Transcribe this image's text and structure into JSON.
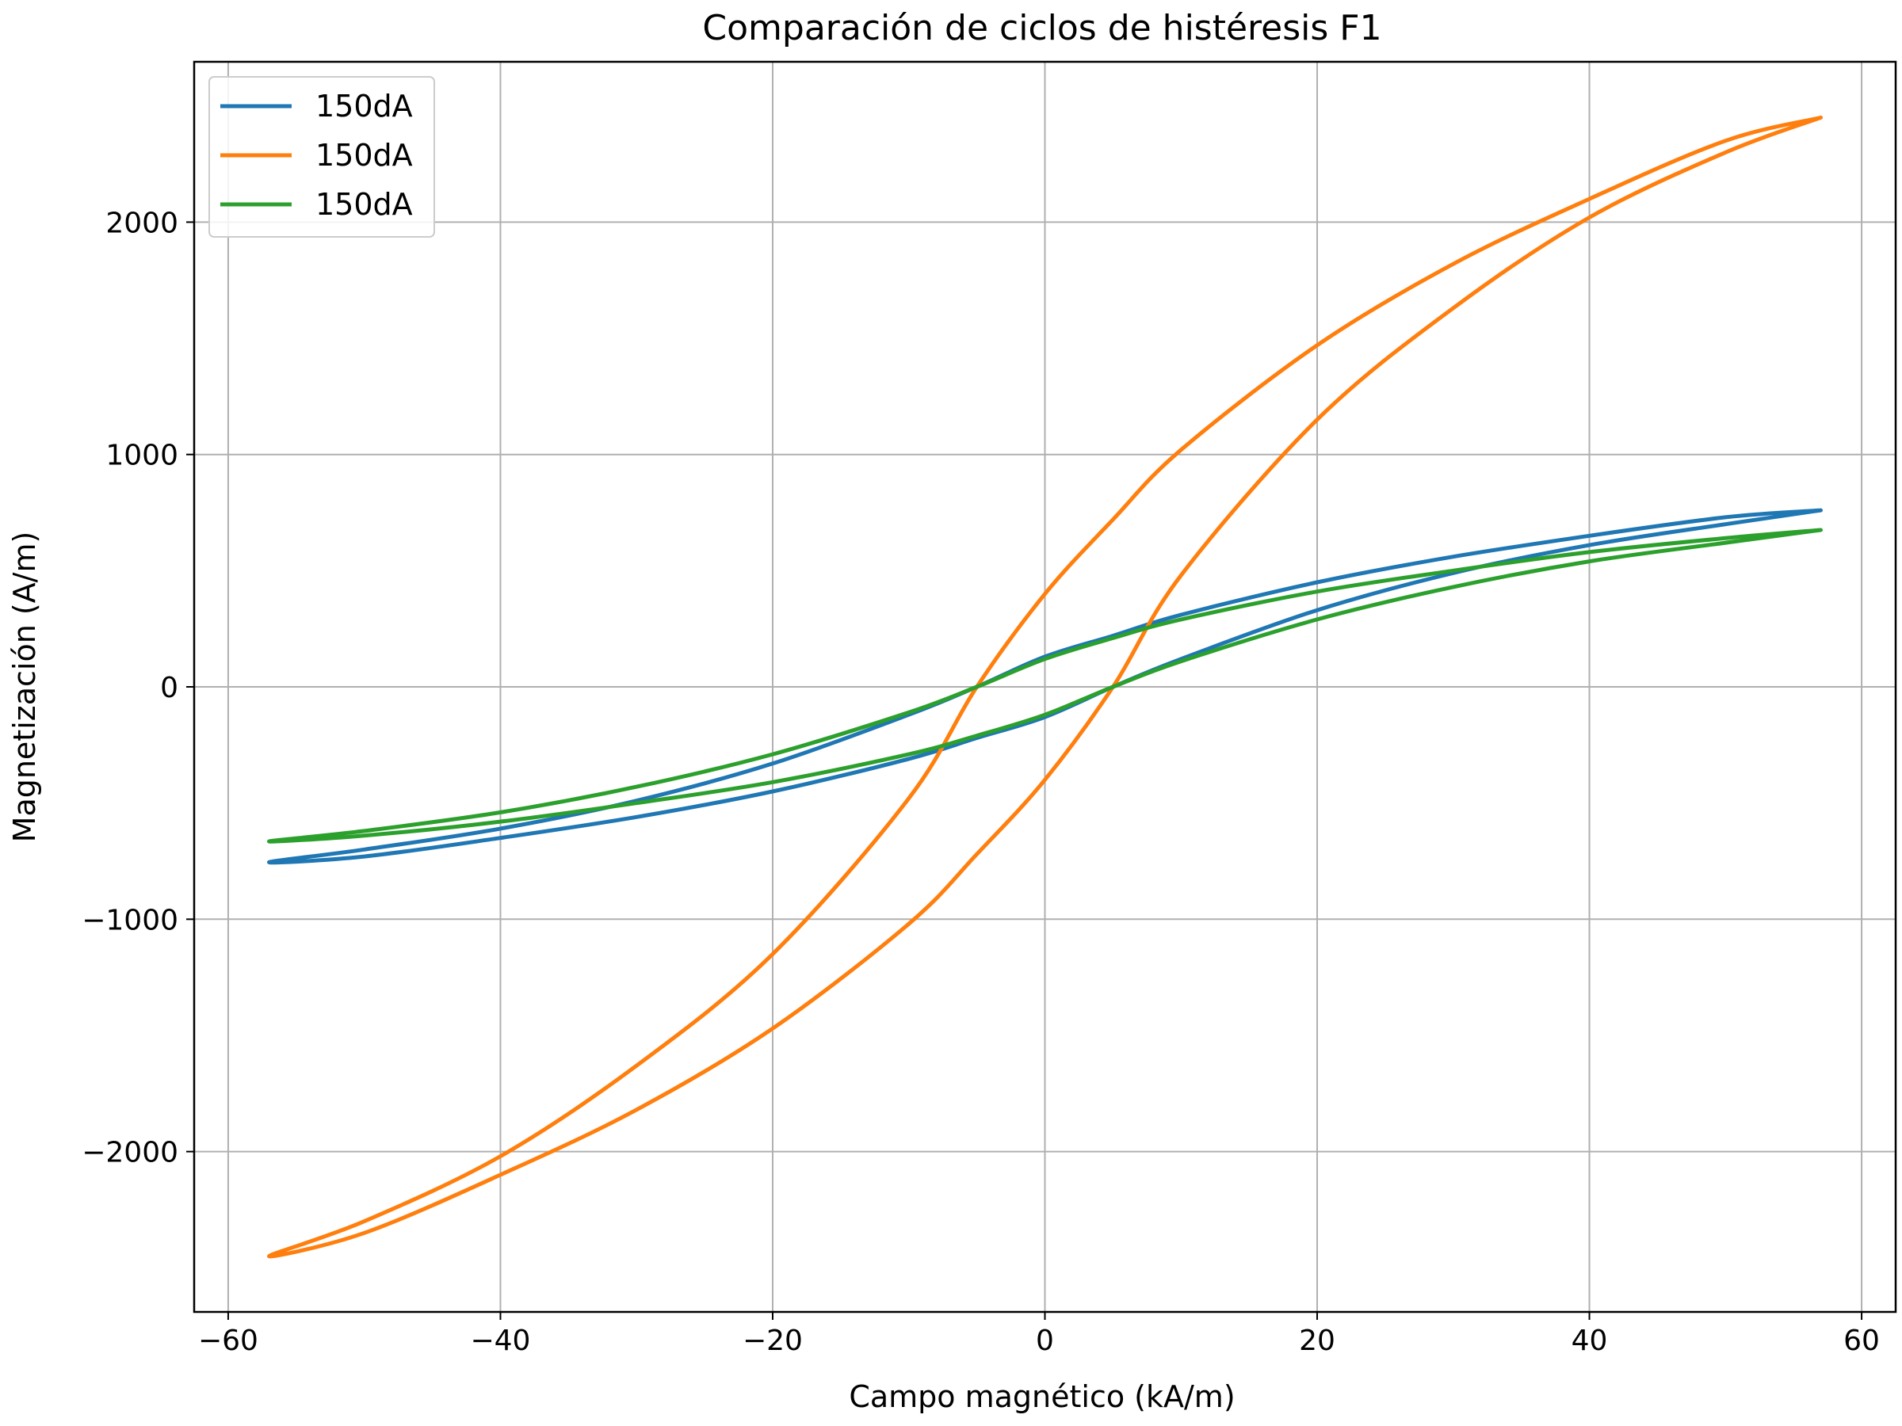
{
  "chart_data": {
    "type": "line",
    "title": "Comparación de ciclos de histéresis F1",
    "xlabel": "Campo magnético (kA/m)",
    "ylabel": "Magnetización (A/m)",
    "xlim": [
      -62.5,
      62.5
    ],
    "ylim": [
      -2690,
      2690
    ],
    "xticks": [
      -60,
      -40,
      -20,
      0,
      20,
      40,
      60
    ],
    "yticks": [
      -2000,
      -1000,
      0,
      1000,
      2000
    ],
    "xtick_labels": [
      "−60",
      "−40",
      "−20",
      "0",
      "20",
      "40",
      "60"
    ],
    "ytick_labels": [
      "−2000",
      "−1000",
      "0",
      "1000",
      "2000"
    ],
    "grid": true,
    "legend_position": "top-left",
    "series": [
      {
        "name": "150dA",
        "color": "#1f77b4",
        "x": [
          57,
          50,
          40,
          30,
          20,
          10,
          5,
          0,
          -5,
          -10,
          -20,
          -30,
          -40,
          -50,
          -57,
          -50,
          -40,
          -30,
          -20,
          -10,
          -5,
          0,
          5,
          10,
          20,
          30,
          40,
          50,
          57
        ],
        "y": [
          760,
          730,
          650,
          560,
          450,
          310,
          220,
          130,
          0,
          -120,
          -330,
          -490,
          -610,
          -700,
          -755,
          -730,
          -650,
          -560,
          -450,
          -310,
          -220,
          -130,
          0,
          120,
          330,
          490,
          610,
          700,
          760
        ]
      },
      {
        "name": "150dA",
        "color": "#ff7f0e",
        "x": [
          57,
          50,
          40,
          30,
          20,
          10,
          5,
          0,
          -5,
          -10,
          -20,
          -30,
          -40,
          -50,
          -57,
          -50,
          -40,
          -30,
          -20,
          -10,
          -5,
          0,
          5,
          10,
          20,
          30,
          40,
          50,
          57
        ],
        "y": [
          2450,
          2350,
          2100,
          1820,
          1470,
          1020,
          720,
          400,
          0,
          -480,
          -1150,
          -1630,
          -2020,
          -2300,
          -2450,
          -2350,
          -2100,
          -1820,
          -1470,
          -1020,
          -720,
          -400,
          0,
          480,
          1150,
          1630,
          2020,
          2300,
          2450
        ]
      },
      {
        "name": "150dA",
        "color": "#2ca02c",
        "x": [
          57,
          50,
          40,
          30,
          20,
          10,
          5,
          0,
          -5,
          -10,
          -20,
          -30,
          -40,
          -50,
          -57,
          -50,
          -40,
          -30,
          -20,
          -10,
          -5,
          0,
          5,
          10,
          20,
          30,
          40,
          50,
          57
        ],
        "y": [
          675,
          640,
          580,
          500,
          410,
          290,
          210,
          120,
          0,
          -110,
          -290,
          -430,
          -540,
          -620,
          -665,
          -640,
          -580,
          -500,
          -410,
          -290,
          -210,
          -120,
          0,
          110,
          290,
          430,
          540,
          620,
          675
        ]
      }
    ]
  }
}
